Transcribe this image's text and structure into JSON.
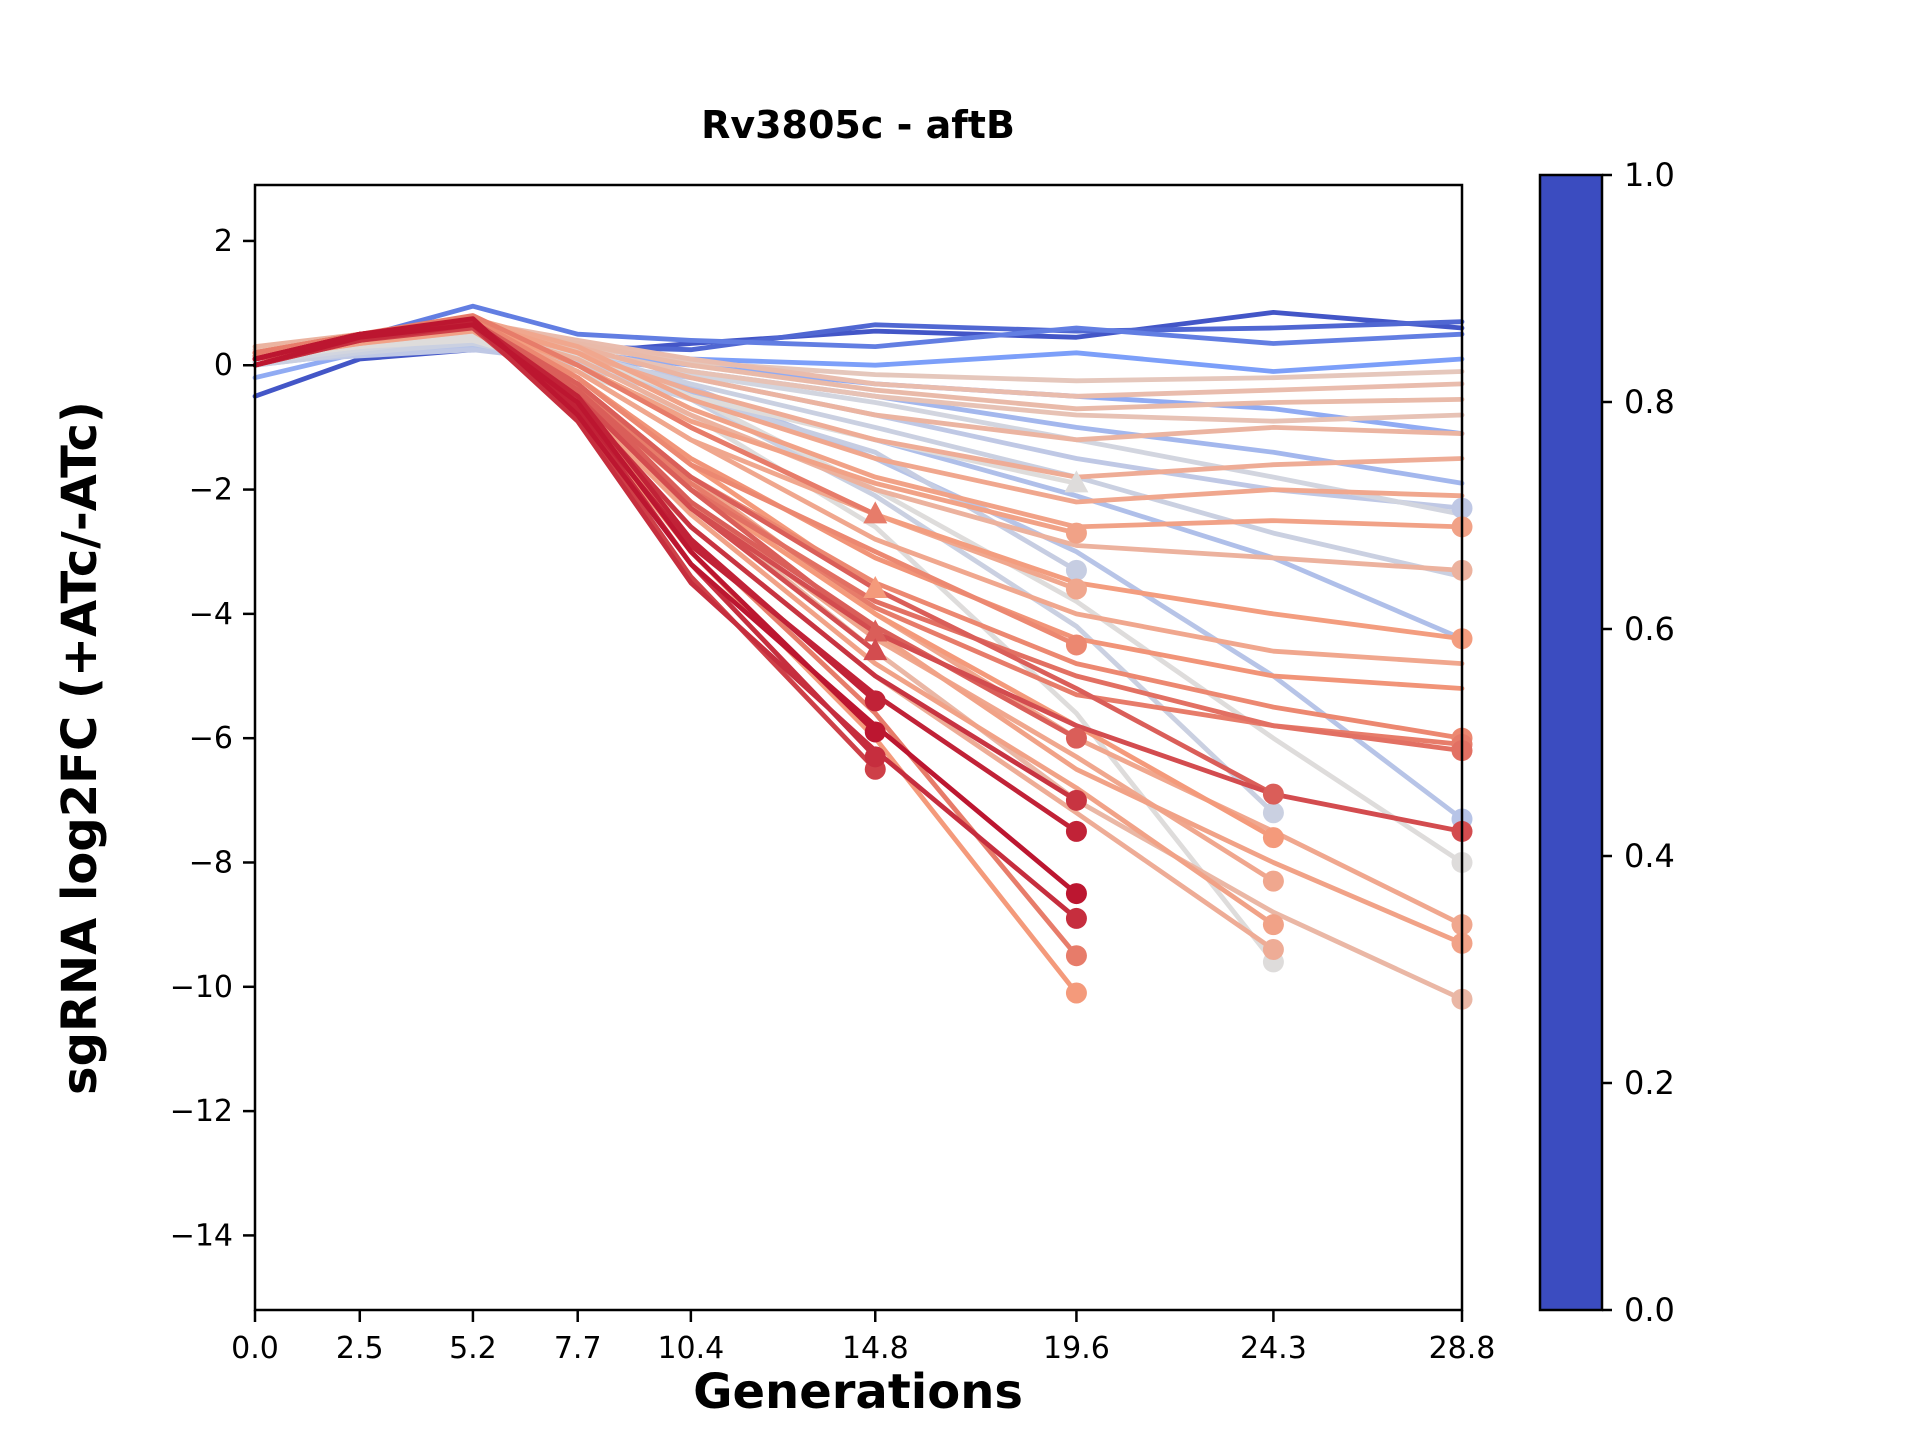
{
  "chart_data": {
    "type": "line",
    "title": "Rv3805c - aftB",
    "xlabel": "Generations",
    "ylabel": "sgRNA log2FC (+ATc/-ATc)",
    "x": [
      0.0,
      2.5,
      5.2,
      7.7,
      10.4,
      14.8,
      19.6,
      24.3,
      28.8
    ],
    "xtick_labels": [
      "0.0",
      "2.5",
      "5.2",
      "7.7",
      "10.4",
      "14.8",
      "19.6",
      "24.3",
      "28.8"
    ],
    "ytick_values": [
      2,
      0,
      -2,
      -4,
      -6,
      -8,
      -10,
      -12,
      -14
    ],
    "ytick_labels": [
      "2",
      "0",
      "−2",
      "−4",
      "−6",
      "−8",
      "−10",
      "−12",
      "−14"
    ],
    "xlim": [
      0,
      28.8
    ],
    "ylim": [
      -15.2,
      2.9
    ],
    "grid": false,
    "legend": "none",
    "colorbar": {
      "min": 0.0,
      "max": 1.0,
      "ticks": [
        "1.0",
        "0.8",
        "0.6",
        "0.4",
        "0.2",
        "0.0"
      ]
    },
    "colormap": {
      "name": "coolwarm",
      "anchors": [
        {
          "t": 0.0,
          "c": "#3b4cc0"
        },
        {
          "t": 0.25,
          "c": "#7c9ff9"
        },
        {
          "t": 0.5,
          "c": "#dedcdb"
        },
        {
          "t": 0.75,
          "c": "#f49a7b"
        },
        {
          "t": 1.0,
          "c": "#b40426"
        }
      ]
    },
    "series_note": "Each series = one sgRNA; v = colormap value (predicted strength 0-1); y = log2FC at each generation, null = dropout after last timepoint; m = end marker",
    "series": [
      {
        "v": 0.03,
        "m": "",
        "y": [
          -0.5,
          0.1,
          0.25,
          0.2,
          0.35,
          0.55,
          0.45,
          0.85,
          0.6
        ]
      },
      {
        "v": 0.08,
        "m": "",
        "y": [
          0.0,
          0.3,
          0.45,
          0.3,
          0.25,
          0.65,
          0.55,
          0.6,
          0.7
        ]
      },
      {
        "v": 0.15,
        "m": "",
        "y": [
          0.15,
          0.45,
          0.95,
          0.5,
          0.4,
          0.3,
          0.6,
          0.35,
          0.5
        ]
      },
      {
        "v": 0.25,
        "m": "",
        "y": [
          0.05,
          0.25,
          0.5,
          0.3,
          0.1,
          0.0,
          0.2,
          -0.1,
          0.1
        ]
      },
      {
        "v": 0.3,
        "m": "",
        "y": [
          -0.2,
          0.2,
          0.4,
          0.2,
          0.0,
          -0.3,
          -0.5,
          -0.7,
          -1.1
        ]
      },
      {
        "v": 0.35,
        "m": "",
        "y": [
          0.1,
          0.3,
          0.35,
          0.15,
          -0.1,
          -0.5,
          -1.0,
          -1.4,
          -1.9
        ]
      },
      {
        "v": 0.42,
        "m": "o",
        "y": [
          0.05,
          0.15,
          0.25,
          0.05,
          -0.2,
          -0.8,
          -1.5,
          -2.0,
          -2.3
        ]
      },
      {
        "v": 0.45,
        "m": "",
        "y": [
          0.0,
          0.3,
          0.5,
          0.2,
          -0.3,
          -1.0,
          -1.8,
          -2.7,
          -3.4
        ]
      },
      {
        "v": 0.38,
        "m": "",
        "y": [
          0.1,
          0.2,
          0.4,
          0.1,
          -0.45,
          -1.2,
          -2.1,
          -3.1,
          -4.4
        ]
      },
      {
        "v": 0.45,
        "m": "o",
        "y": [
          0.0,
          0.2,
          0.35,
          0.0,
          -0.55,
          -2.1,
          -4.2,
          -7.2,
          null
        ]
      },
      {
        "v": 0.5,
        "m": "o",
        "y": [
          0.1,
          0.3,
          0.4,
          -0.1,
          -0.8,
          -2.6,
          -5.6,
          -9.6,
          null
        ]
      },
      {
        "v": 0.4,
        "m": "o",
        "y": [
          0.0,
          0.2,
          0.3,
          0.1,
          -0.35,
          -1.5,
          -3.0,
          -5.0,
          -7.3
        ]
      },
      {
        "v": 0.5,
        "m": "o",
        "y": [
          0.1,
          0.3,
          0.5,
          0.2,
          -0.5,
          -2.0,
          -3.8,
          -6.0,
          -8.0
        ]
      },
      {
        "v": 0.47,
        "m": "",
        "y": [
          0.05,
          0.25,
          0.45,
          0.25,
          -0.15,
          -0.6,
          -1.2,
          -1.8,
          -2.4
        ]
      },
      {
        "v": 0.44,
        "m": "o",
        "y": [
          0.1,
          0.25,
          0.4,
          0.1,
          -0.5,
          -1.4,
          -3.3,
          null,
          null
        ]
      },
      {
        "v": 0.5,
        "m": "^",
        "y": [
          0.1,
          0.3,
          0.45,
          0.15,
          -0.5,
          -1.2,
          -1.9,
          null,
          null
        ]
      },
      {
        "v": 0.58,
        "m": "",
        "y": [
          0.2,
          0.4,
          0.6,
          0.3,
          0.05,
          -0.15,
          -0.25,
          -0.2,
          -0.1
        ]
      },
      {
        "v": 0.62,
        "m": "",
        "y": [
          0.25,
          0.5,
          0.7,
          0.4,
          0.1,
          -0.3,
          -0.5,
          -0.4,
          -0.3
        ]
      },
      {
        "v": 0.65,
        "m": "",
        "y": [
          0.3,
          0.5,
          0.7,
          0.3,
          -0.2,
          -0.8,
          -1.2,
          -1.0,
          -1.1
        ]
      },
      {
        "v": 0.68,
        "m": "",
        "y": [
          0.2,
          0.45,
          0.65,
          0.2,
          -0.4,
          -1.2,
          -1.8,
          -1.6,
          -1.5
        ]
      },
      {
        "v": 0.7,
        "m": "",
        "y": [
          0.2,
          0.5,
          0.75,
          0.3,
          -0.55,
          -1.5,
          -2.2,
          -2.0,
          -2.1
        ]
      },
      {
        "v": 0.72,
        "m": "o",
        "y": [
          0.1,
          0.4,
          0.7,
          0.2,
          -0.7,
          -1.8,
          -2.6,
          -2.5,
          -2.6
        ]
      },
      {
        "v": 0.66,
        "m": "o",
        "y": [
          0.2,
          0.4,
          0.6,
          0.1,
          -0.8,
          -2.0,
          -2.9,
          -3.1,
          -3.3
        ]
      },
      {
        "v": 0.74,
        "m": "o",
        "y": [
          0.2,
          0.5,
          0.7,
          0.0,
          -1.0,
          -2.4,
          -3.5,
          -4.0,
          -4.4
        ]
      },
      {
        "v": 0.7,
        "m": "",
        "y": [
          0.1,
          0.35,
          0.6,
          -0.1,
          -1.2,
          -2.8,
          -4.0,
          -4.6,
          -4.8
        ]
      },
      {
        "v": 0.76,
        "m": "",
        "y": [
          0.2,
          0.45,
          0.7,
          -0.2,
          -1.5,
          -3.1,
          -4.4,
          -5.0,
          -5.2
        ]
      },
      {
        "v": 0.78,
        "m": "o",
        "y": [
          0.2,
          0.5,
          0.75,
          -0.3,
          -1.8,
          -3.5,
          -4.8,
          -5.5,
          -6.0
        ]
      },
      {
        "v": 0.82,
        "m": "o",
        "y": [
          0.1,
          0.4,
          0.7,
          -0.4,
          -2.0,
          -3.8,
          -5.0,
          -5.8,
          -6.2
        ]
      },
      {
        "v": 0.7,
        "m": "o",
        "y": [
          0.2,
          0.4,
          0.6,
          -0.3,
          -1.8,
          -4.0,
          -6.0,
          -7.5,
          -9.0
        ]
      },
      {
        "v": 0.72,
        "m": "o",
        "y": [
          0.1,
          0.35,
          0.55,
          -0.45,
          -2.0,
          -4.3,
          -6.5,
          -8.0,
          -9.3
        ]
      },
      {
        "v": 0.64,
        "m": "o",
        "y": [
          0.2,
          0.4,
          0.6,
          -0.5,
          -2.2,
          -4.6,
          -7.0,
          -8.8,
          -10.2
        ]
      },
      {
        "v": 0.6,
        "m": "",
        "y": [
          0.15,
          0.35,
          0.55,
          0.25,
          -0.1,
          -0.5,
          -0.8,
          -0.9,
          -0.8
        ]
      },
      {
        "v": 0.63,
        "m": "",
        "y": [
          0.2,
          0.4,
          0.65,
          0.35,
          0.0,
          -0.4,
          -0.7,
          -0.6,
          -0.55
        ]
      },
      {
        "v": 0.95,
        "m": "o",
        "y": [
          0.1,
          0.5,
          0.7,
          -0.5,
          -2.8,
          -5.4,
          null,
          null,
          null
        ]
      },
      {
        "v": 0.97,
        "m": "o",
        "y": [
          0.0,
          0.45,
          0.65,
          -0.6,
          -3.0,
          -5.9,
          null,
          null,
          null
        ]
      },
      {
        "v": 0.93,
        "m": "o",
        "y": [
          0.1,
          0.5,
          0.7,
          -0.7,
          -3.2,
          -6.3,
          null,
          null,
          null
        ]
      },
      {
        "v": 0.9,
        "m": "o",
        "y": [
          0.0,
          0.4,
          0.6,
          -0.8,
          -3.4,
          -6.5,
          null,
          null,
          null
        ]
      },
      {
        "v": 0.8,
        "m": "^",
        "y": [
          0.2,
          0.5,
          0.8,
          0.0,
          -1.0,
          -2.4,
          null,
          null,
          null
        ]
      },
      {
        "v": 0.75,
        "m": "^",
        "y": [
          0.2,
          0.45,
          0.7,
          -0.2,
          -1.6,
          -3.6,
          null,
          null,
          null
        ]
      },
      {
        "v": 0.85,
        "m": "^",
        "y": [
          0.1,
          0.5,
          0.7,
          -0.4,
          -2.0,
          -4.3,
          null,
          null,
          null
        ]
      },
      {
        "v": 0.88,
        "m": "^",
        "y": [
          0.1,
          0.45,
          0.65,
          -0.5,
          -2.3,
          -4.6,
          null,
          null,
          null
        ]
      },
      {
        "v": 0.92,
        "m": "o",
        "y": [
          0.1,
          0.5,
          0.7,
          -0.6,
          -2.6,
          -5.0,
          -7.0,
          null,
          null
        ]
      },
      {
        "v": 0.95,
        "m": "o",
        "y": [
          0.0,
          0.45,
          0.7,
          -0.7,
          -2.9,
          -5.3,
          -7.5,
          null,
          null
        ]
      },
      {
        "v": 0.97,
        "m": "o",
        "y": [
          0.1,
          0.5,
          0.75,
          -0.8,
          -3.2,
          -5.8,
          -8.5,
          null,
          null
        ]
      },
      {
        "v": 0.93,
        "m": "o",
        "y": [
          0.0,
          0.4,
          0.65,
          -0.9,
          -3.5,
          -6.2,
          -8.9,
          null,
          null
        ]
      },
      {
        "v": 0.8,
        "m": "o",
        "y": [
          0.2,
          0.5,
          0.7,
          -0.6,
          -2.8,
          -5.6,
          -9.5,
          null,
          null
        ]
      },
      {
        "v": 0.75,
        "m": "o",
        "y": [
          0.2,
          0.45,
          0.65,
          -0.7,
          -3.0,
          -6.0,
          -10.1,
          null,
          null
        ]
      },
      {
        "v": 0.85,
        "m": "o",
        "y": [
          0.1,
          0.45,
          0.7,
          -0.4,
          -2.2,
          -4.2,
          -6.0,
          null,
          null
        ]
      },
      {
        "v": 0.78,
        "m": "o",
        "y": [
          0.2,
          0.5,
          0.75,
          -0.2,
          -1.6,
          -3.0,
          -4.5,
          null,
          null
        ]
      },
      {
        "v": 0.72,
        "m": "o",
        "y": [
          0.2,
          0.4,
          0.7,
          0.0,
          -0.9,
          -1.9,
          -2.7,
          null,
          null
        ]
      },
      {
        "v": 0.7,
        "m": "o",
        "y": [
          0.15,
          0.4,
          0.65,
          -0.1,
          -1.2,
          -2.4,
          -3.6,
          null,
          null
        ]
      },
      {
        "v": 0.85,
        "m": "o",
        "y": [
          0.1,
          0.4,
          0.7,
          -0.3,
          -1.8,
          -3.6,
          -5.2,
          -6.9,
          null
        ]
      },
      {
        "v": 0.75,
        "m": "o",
        "y": [
          0.2,
          0.5,
          0.7,
          -0.4,
          -2.0,
          -4.0,
          -5.8,
          -7.6,
          null
        ]
      },
      {
        "v": 0.7,
        "m": "o",
        "y": [
          0.2,
          0.4,
          0.6,
          -0.5,
          -2.2,
          -4.4,
          -6.3,
          -8.3,
          null
        ]
      },
      {
        "v": 0.72,
        "m": "o",
        "y": [
          0.1,
          0.4,
          0.6,
          -0.6,
          -2.4,
          -4.8,
          -6.8,
          -9.0,
          null
        ]
      },
      {
        "v": 0.68,
        "m": "o",
        "y": [
          0.2,
          0.5,
          0.7,
          -0.7,
          -2.6,
          -5.0,
          -7.2,
          -9.4,
          null
        ]
      },
      {
        "v": 0.88,
        "m": "o",
        "y": [
          0.1,
          0.4,
          0.7,
          -0.5,
          -2.3,
          -4.3,
          -5.8,
          -6.9,
          -7.5
        ]
      },
      {
        "v": 0.8,
        "m": "o",
        "y": [
          0.15,
          0.45,
          0.7,
          -0.35,
          -1.9,
          -3.9,
          -5.3,
          -5.8,
          -6.1
        ]
      }
    ]
  }
}
